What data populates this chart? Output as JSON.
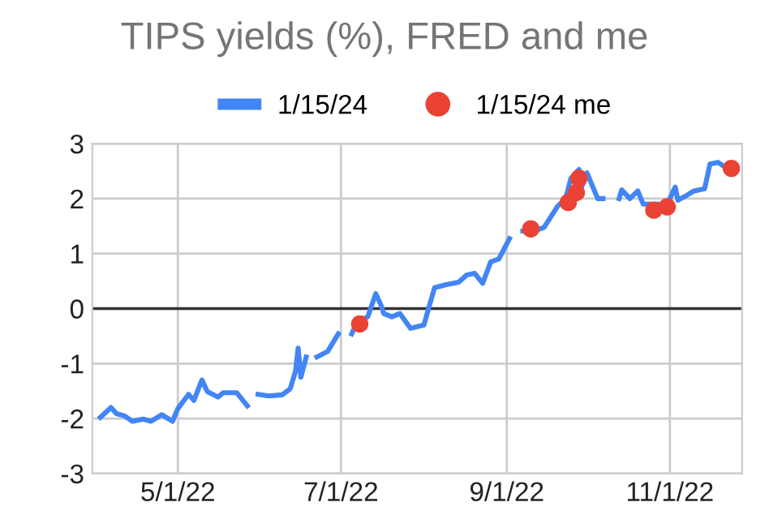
{
  "chart_data": {
    "type": "line",
    "title": "TIPS yields (%), FRED and me",
    "x": [
      "2022-04-02",
      "2022-04-06",
      "2022-04-08",
      "2022-04-11",
      "2022-04-14",
      "2022-04-18",
      "2022-04-21",
      "2022-04-25",
      "2022-04-29",
      "2022-05-01",
      "2022-05-05",
      "2022-05-07",
      "2022-05-10",
      "2022-05-12",
      "2022-05-16",
      "2022-05-18",
      "2022-05-23",
      "2022-05-27",
      "2022-05-29",
      "2022-05-31",
      "2022-06-04",
      "2022-06-09",
      "2022-06-12",
      "2022-06-14",
      "2022-06-15",
      "2022-06-16",
      "2022-06-18",
      "2022-06-20",
      "2022-06-22",
      "2022-06-26",
      "2022-06-30",
      "2022-07-02",
      "2022-07-05",
      "2022-07-07",
      "2022-07-11",
      "2022-07-14",
      "2022-07-16",
      "2022-07-17",
      "2022-07-20",
      "2022-07-23",
      "2022-07-27",
      "2022-08-01",
      "2022-08-05",
      "2022-08-09",
      "2022-08-14",
      "2022-08-17",
      "2022-08-20",
      "2022-08-23",
      "2022-08-26",
      "2022-08-29",
      "2022-09-02",
      "2022-09-04",
      "2022-09-07",
      "2022-09-12",
      "2022-09-15",
      "2022-09-20",
      "2022-09-23",
      "2022-09-25",
      "2022-09-28",
      "2022-09-29",
      "2022-10-01",
      "2022-10-05",
      "2022-10-07",
      "2022-10-10",
      "2022-10-13",
      "2022-10-14",
      "2022-10-17",
      "2022-10-20",
      "2022-10-22",
      "2022-10-26",
      "2022-10-31",
      "2022-11-03",
      "2022-11-04",
      "2022-11-07",
      "2022-11-10",
      "2022-11-14",
      "2022-11-16",
      "2022-11-19",
      "2022-11-23"
    ],
    "series": [
      {
        "name": "1/15/24",
        "color": "#4285f4",
        "marker": "none",
        "values": [
          -1.98,
          -1.8,
          -1.91,
          -1.95,
          -2.05,
          -2.01,
          -2.05,
          -1.93,
          -2.05,
          -1.82,
          -1.56,
          -1.67,
          -1.3,
          -1.51,
          -1.61,
          -1.53,
          -1.53,
          -1.77,
          null,
          -1.56,
          -1.59,
          -1.57,
          -1.46,
          -1.14,
          -0.72,
          -1.25,
          -0.88,
          null,
          -0.88,
          -0.78,
          -0.46,
          null,
          -0.46,
          -0.25,
          -0.15,
          0.27,
          0.06,
          -0.09,
          -0.15,
          -0.09,
          -0.36,
          -0.3,
          0.38,
          0.43,
          0.48,
          0.61,
          0.64,
          0.46,
          0.85,
          0.9,
          1.27,
          null,
          1.41,
          1.42,
          1.48,
          1.86,
          2.0,
          2.37,
          2.53,
          2.21,
          2.47,
          2.0,
          2.0,
          null,
          2.0,
          2.16,
          2.0,
          2.14,
          1.9,
          1.9,
          1.9,
          2.21,
          1.97,
          2.05,
          2.14,
          2.18,
          2.63,
          2.66,
          2.53
        ]
      },
      {
        "name": "1/15/24 me",
        "type": "scatter",
        "color": "#ea4335",
        "marker": "circle",
        "x": [
          "2022-07-08",
          "2022-09-10",
          "2022-09-24",
          "2022-09-27",
          "2022-09-28",
          "2022-10-26",
          "2022-10-31",
          "2022-11-24"
        ],
        "values": [
          -0.28,
          1.45,
          1.93,
          2.11,
          2.37,
          1.79,
          1.85,
          2.55
        ]
      }
    ],
    "xlim": [
      "2022-03-30",
      "2022-11-28"
    ],
    "xticks": [
      {
        "value": "2022-05-01",
        "label": "5/1/22"
      },
      {
        "value": "2022-07-01",
        "label": "7/1/22"
      },
      {
        "value": "2022-09-01",
        "label": "9/1/22"
      },
      {
        "value": "2022-11-01",
        "label": "11/1/22"
      }
    ],
    "ylim": [
      -3,
      3
    ],
    "yticks": [
      -3,
      -2,
      -1,
      0,
      1,
      2,
      3
    ],
    "ref_lines": [
      {
        "axis": "y",
        "value": 0,
        "color": "#333333"
      }
    ],
    "grid": true,
    "legend": "top",
    "line_style": "solid"
  }
}
